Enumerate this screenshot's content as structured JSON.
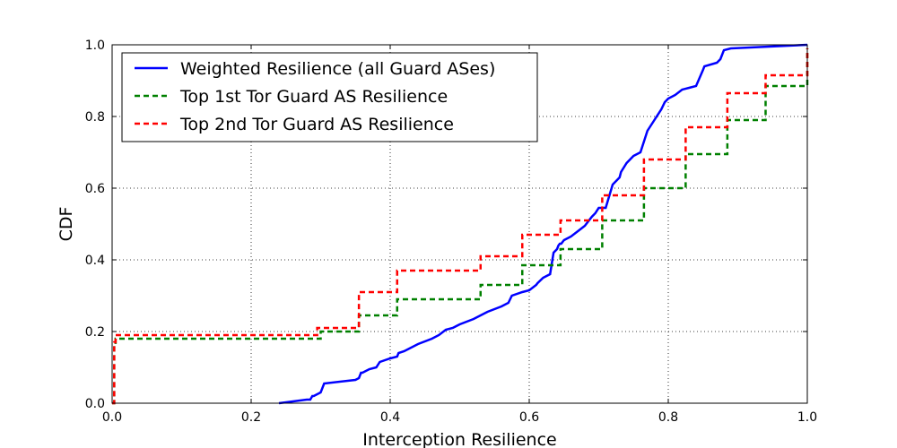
{
  "chart_data": {
    "type": "line",
    "title": "",
    "xlabel": "Interception Resilience",
    "ylabel": "CDF",
    "xlim": [
      0.0,
      1.0
    ],
    "ylim": [
      0.0,
      1.0
    ],
    "xticks": [
      "0.0",
      "0.2",
      "0.4",
      "0.6",
      "0.8",
      "1.0"
    ],
    "yticks": [
      "0.0",
      "0.2",
      "0.4",
      "0.6",
      "0.8",
      "1.0"
    ],
    "grid": true,
    "legend_position": "top-left",
    "series": [
      {
        "name": "Weighted Resilience (all Guard ASes)",
        "color": "#0000ff",
        "style": "solid",
        "x": [
          0.24,
          0.28,
          0.285,
          0.288,
          0.29,
          0.3,
          0.305,
          0.35,
          0.355,
          0.358,
          0.36,
          0.37,
          0.38,
          0.385,
          0.4,
          0.41,
          0.412,
          0.42,
          0.44,
          0.46,
          0.47,
          0.48,
          0.49,
          0.5,
          0.52,
          0.54,
          0.56,
          0.57,
          0.575,
          0.59,
          0.6,
          0.61,
          0.612,
          0.62,
          0.625,
          0.63,
          0.635,
          0.64,
          0.642,
          0.644,
          0.646,
          0.65,
          0.66,
          0.67,
          0.68,
          0.69,
          0.695,
          0.7,
          0.71,
          0.72,
          0.73,
          0.732,
          0.74,
          0.75,
          0.76,
          0.77,
          0.78,
          0.79,
          0.795,
          0.8,
          0.81,
          0.82,
          0.83,
          0.84,
          0.85,
          0.852,
          0.87,
          0.875,
          0.88,
          0.89,
          1.0
        ],
        "y": [
          0.0,
          0.01,
          0.01,
          0.02,
          0.02,
          0.03,
          0.055,
          0.065,
          0.07,
          0.085,
          0.085,
          0.095,
          0.1,
          0.115,
          0.125,
          0.13,
          0.14,
          0.145,
          0.165,
          0.18,
          0.19,
          0.205,
          0.21,
          0.22,
          0.235,
          0.255,
          0.27,
          0.28,
          0.3,
          0.31,
          0.315,
          0.33,
          0.335,
          0.35,
          0.355,
          0.36,
          0.42,
          0.43,
          0.44,
          0.445,
          0.445,
          0.455,
          0.465,
          0.48,
          0.495,
          0.52,
          0.53,
          0.545,
          0.545,
          0.61,
          0.63,
          0.645,
          0.67,
          0.69,
          0.7,
          0.76,
          0.79,
          0.82,
          0.84,
          0.85,
          0.86,
          0.875,
          0.88,
          0.885,
          0.93,
          0.94,
          0.95,
          0.96,
          0.985,
          0.99,
          1.0
        ]
      },
      {
        "name": "Top 1st Tor Guard AS Resilience",
        "color": "#008000",
        "style": "dashed",
        "x": [
          0.0,
          0.003,
          0.005,
          0.3,
          0.355,
          0.41,
          0.53,
          0.59,
          0.645,
          0.705,
          0.765,
          0.825,
          0.885,
          0.94,
          1.0
        ],
        "y": [
          0.0,
          0.16,
          0.18,
          0.2,
          0.245,
          0.29,
          0.33,
          0.385,
          0.43,
          0.51,
          0.6,
          0.695,
          0.79,
          0.885,
          0.99
        ]
      },
      {
        "name": "Top 2nd Tor Guard AS Resilience",
        "color": "#ff0000",
        "style": "dashed",
        "x": [
          0.0,
          0.003,
          0.005,
          0.295,
          0.355,
          0.41,
          0.53,
          0.59,
          0.645,
          0.705,
          0.765,
          0.825,
          0.885,
          0.94,
          1.0
        ],
        "y": [
          0.0,
          0.17,
          0.19,
          0.21,
          0.31,
          0.37,
          0.41,
          0.47,
          0.51,
          0.58,
          0.68,
          0.77,
          0.865,
          0.915,
          0.99
        ]
      }
    ]
  }
}
